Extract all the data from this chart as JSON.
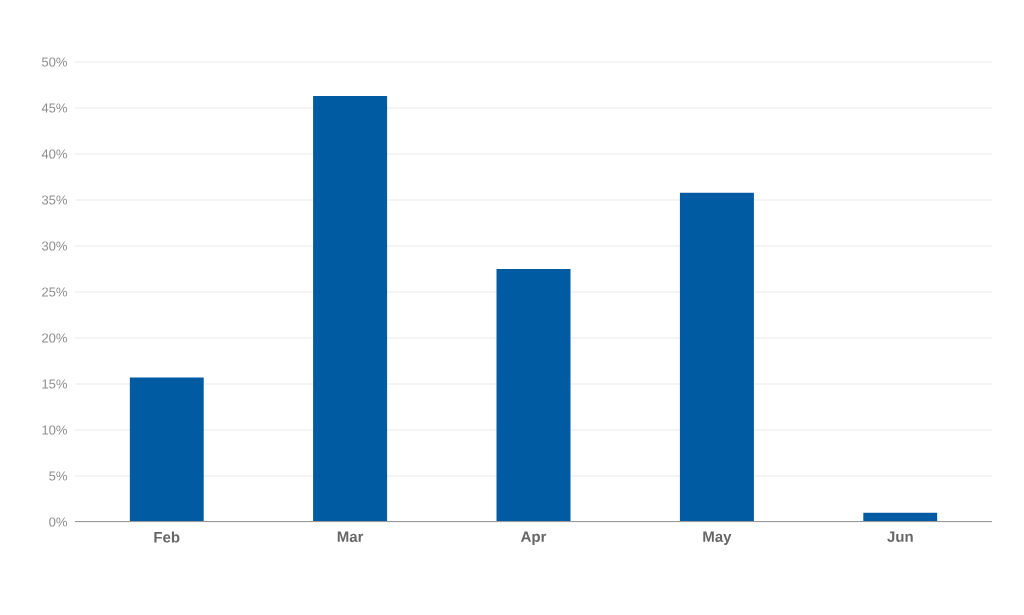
{
  "chart_data": {
    "type": "bar",
    "categories": [
      "Feb",
      "Mar",
      "Apr",
      "May",
      "Jun"
    ],
    "values": [
      15.7,
      46.3,
      27.5,
      35.8,
      1.0
    ],
    "color": "#005ba3",
    "ylim": [
      0,
      50
    ],
    "yticks": [
      {
        "value": 0,
        "label": "0%"
      },
      {
        "value": 5,
        "label": "5%"
      },
      {
        "value": 10,
        "label": "10%"
      },
      {
        "value": 15,
        "label": "15%"
      },
      {
        "value": 20,
        "label": "20%"
      },
      {
        "value": 25,
        "label": "25%"
      },
      {
        "value": 30,
        "label": "30%"
      },
      {
        "value": 35,
        "label": "35%"
      },
      {
        "value": 40,
        "label": "40%"
      },
      {
        "value": 45,
        "label": "45%"
      },
      {
        "value": 50,
        "label": "50%"
      }
    ],
    "grid": "y"
  }
}
